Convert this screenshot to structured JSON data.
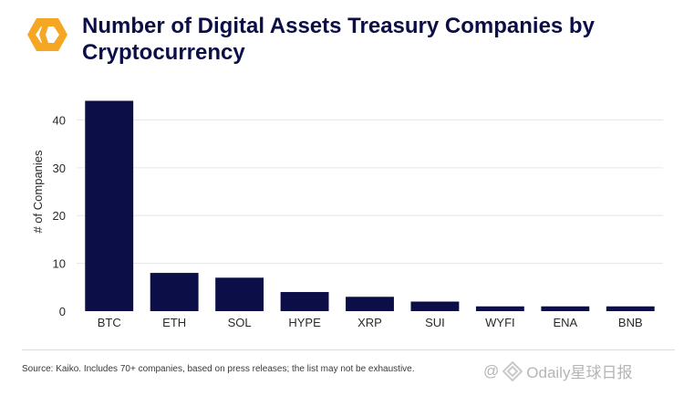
{
  "header": {
    "title": "Number of Digital Assets Treasury Companies by Cryptocurrency"
  },
  "chart_data": {
    "type": "bar",
    "title": "Number of Digital Assets Treasury Companies by Cryptocurrency",
    "xlabel": "",
    "ylabel": "# of Companies",
    "categories": [
      "BTC",
      "ETH",
      "SOL",
      "HYPE",
      "XRP",
      "SUI",
      "WYFI",
      "ENA",
      "BNB"
    ],
    "values": [
      44,
      8,
      7,
      4,
      3,
      2,
      1,
      1,
      1
    ],
    "yticks": [
      0,
      10,
      20,
      30,
      40
    ],
    "ylim": [
      0,
      46
    ],
    "grid": true,
    "bar_color": "#0c0f47"
  },
  "footer": {
    "source": "Source: Kaiko.  Includes 70+ companies, based on press releases; the list may not be exhaustive.",
    "watermark": "Odaily星球日报",
    "watermark_prefix": "@"
  },
  "colors": {
    "brand_orange": "#f5a623",
    "title": "#0c0f47",
    "bar": "#0c0f47"
  }
}
